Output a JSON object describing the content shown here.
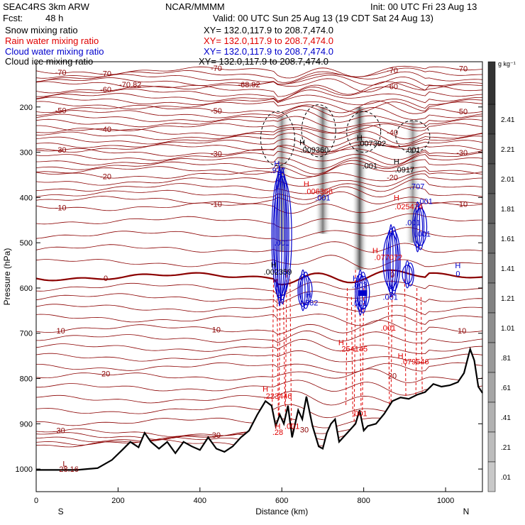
{
  "header": {
    "model": "SEAC4RS  3km ARW",
    "org": "NCAR/MMMM",
    "init": "Init: 00 UTC Fri 23 Aug 13",
    "fcst_label": "Fcst:",
    "fcst_value": "48 h",
    "valid": "Valid: 00 UTC Sun 25 Aug 13 (19 CDT Sat 24 Aug 13)",
    "fields": [
      {
        "label": "Snow mixing ratio",
        "xy": "XY= 132.0,117.9 to 208.7,474.0",
        "color": "#000000"
      },
      {
        "label": "Rain water mixing ratio",
        "xy": "XY= 132.0,117.9 to 208.7,474.0",
        "color": "#e00000"
      },
      {
        "label": "Cloud water mixing ratio",
        "xy": "XY= 132.0,117.9 to 208.7,474.0",
        "color": "#0000cc"
      },
      {
        "label": "Cloud ice mixing ratio",
        "xy": "XY= 132.0,117.9 to 208.7,474.0",
        "color": "#000000"
      }
    ]
  },
  "colorbar": {
    "unit": "g kg⁻¹",
    "labels": [
      "2.41",
      "2.21",
      "2.01",
      "1.81",
      "1.61",
      "1.41",
      "1.21",
      "1.01",
      ".81",
      ".61",
      ".41",
      ".21",
      ".01"
    ]
  },
  "chart_data": {
    "type": "cross-section",
    "xlabel": "Distance (km)",
    "ylabel": "Pressure (hPa)",
    "xlim": [
      0,
      1090
    ],
    "ylim": [
      1050,
      100
    ],
    "x_ticks": [
      "0",
      "200",
      "400",
      "600",
      "800",
      "1000"
    ],
    "y_ticks": [
      "200",
      "300",
      "400",
      "500",
      "600",
      "700",
      "800",
      "900",
      "1000"
    ],
    "x_end_labels": {
      "left": "S",
      "right": "N"
    },
    "temperature_labels": [
      "-70",
      "-60",
      "-50",
      "-40",
      "-30",
      "-20",
      "-10",
      "0",
      "10",
      "20",
      "30"
    ],
    "annotations": [
      {
        "text": "-70.82",
        "x": 230,
        "p": 150,
        "color": "#8b0000"
      },
      {
        "text": "-68.92",
        "x": 520,
        "p": 150,
        "color": "#8b0000"
      },
      {
        "text": "L",
        "x": 70,
        "p": 988,
        "color": "#8b0000"
      },
      {
        "text": "28.16",
        "x": 80,
        "p": 1000,
        "color": "#8b0000"
      },
      {
        "text": "H",
        "x": 650,
        "p": 278,
        "color": "#000000"
      },
      {
        "text": ".009360",
        "x": 680,
        "p": 294,
        "color": "#000000"
      },
      {
        "text": "H",
        "x": 790,
        "p": 268,
        "color": "#000000"
      },
      {
        "text": ".007392",
        "x": 820,
        "p": 280,
        "color": "#000000"
      },
      {
        "text": ".001",
        "x": 920,
        "p": 294,
        "color": "#000000"
      },
      {
        "text": "H",
        "x": 880,
        "p": 320,
        "color": "#000000"
      },
      {
        "text": ".0917",
        "x": 900,
        "p": 338,
        "color": "#000000"
      },
      {
        "text": ".001",
        "x": 815,
        "p": 330,
        "color": "#000000"
      },
      {
        "text": "H",
        "x": 580,
        "p": 548,
        "color": "#000000"
      },
      {
        "text": ".002359",
        "x": 590,
        "p": 564,
        "color": "#000000"
      },
      {
        "text": "H",
        "x": 588,
        "p": 325,
        "color": "#0000cc"
      },
      {
        "text": ".937",
        "x": 590,
        "p": 340,
        "color": "#0000cc"
      },
      {
        "text": "H",
        "x": 660,
        "p": 370,
        "color": "#e00000"
      },
      {
        "text": ".006366",
        "x": 690,
        "p": 386,
        "color": "#e00000"
      },
      {
        "text": ".001",
        "x": 700,
        "p": 400,
        "color": "#0000cc"
      },
      {
        "text": ".001",
        "x": 600,
        "p": 500,
        "color": "#0000cc"
      },
      {
        "text": ".707",
        "x": 930,
        "p": 375,
        "color": "#0000cc"
      },
      {
        "text": "H",
        "x": 880,
        "p": 400,
        "color": "#e00000"
      },
      {
        "text": ".025474",
        "x": 910,
        "p": 420,
        "color": "#e00000"
      },
      {
        "text": ".001",
        "x": 950,
        "p": 408,
        "color": "#0000cc"
      },
      {
        "text": ".001",
        "x": 920,
        "p": 455,
        "color": "#0000cc"
      },
      {
        "text": ".001",
        "x": 945,
        "p": 480,
        "color": "#0000cc"
      },
      {
        "text": "H",
        "x": 828,
        "p": 517,
        "color": "#e00000"
      },
      {
        "text": ".077072",
        "x": 860,
        "p": 532,
        "color": "#e00000"
      },
      {
        "text": "H",
        "x": 1030,
        "p": 550,
        "color": "#0000cc"
      },
      {
        "text": "0",
        "x": 1030,
        "p": 568,
        "color": "#0000cc"
      },
      {
        "text": "H",
        "x": 780,
        "p": 578,
        "color": "#0000cc"
      },
      {
        "text": ".803",
        "x": 790,
        "p": 593,
        "color": "#0000cc"
      },
      {
        "text": "H",
        "x": 665,
        "p": 615,
        "color": "#0000cc"
      },
      {
        "text": ".382",
        "x": 670,
        "p": 632,
        "color": "#0000cc"
      },
      {
        "text": ".001",
        "x": 790,
        "p": 633,
        "color": "#0000cc"
      },
      {
        "text": ".001",
        "x": 865,
        "p": 620,
        "color": "#0000cc"
      },
      {
        "text": ".001",
        "x": 860,
        "p": 688,
        "color": "#e00000"
      },
      {
        "text": "H",
        "x": 745,
        "p": 720,
        "color": "#e00000"
      },
      {
        "text": ".254145",
        "x": 775,
        "p": 734,
        "color": "#e00000"
      },
      {
        "text": "H",
        "x": 890,
        "p": 750,
        "color": "#e00000"
      },
      {
        "text": ".079546",
        "x": 925,
        "p": 762,
        "color": "#e00000"
      },
      {
        "text": "H",
        "x": 560,
        "p": 823,
        "color": "#e00000"
      },
      {
        "text": ".223446",
        "x": 590,
        "p": 838,
        "color": "#e00000"
      },
      {
        "text": ".001",
        "x": 790,
        "p": 877,
        "color": "#e00000"
      },
      {
        "text": "H",
        "x": 590,
        "p": 905,
        "color": "#e00000"
      },
      {
        "text": ".001",
        "x": 625,
        "p": 905,
        "color": "#e00000"
      },
      {
        "text": ".28",
        "x": 590,
        "p": 918,
        "color": "#e00000"
      },
      {
        "text": "30",
        "x": 655,
        "p": 913,
        "color": "#8b0000"
      }
    ],
    "terrain": [
      [
        0,
        1002
      ],
      [
        100,
        1002
      ],
      [
        150,
        998
      ],
      [
        185,
        980
      ],
      [
        210,
        958
      ],
      [
        230,
        940
      ],
      [
        250,
        952
      ],
      [
        265,
        920
      ],
      [
        280,
        940
      ],
      [
        300,
        955
      ],
      [
        320,
        940
      ],
      [
        340,
        965
      ],
      [
        360,
        940
      ],
      [
        380,
        950
      ],
      [
        400,
        958
      ],
      [
        420,
        930
      ],
      [
        440,
        955
      ],
      [
        460,
        962
      ],
      [
        480,
        950
      ],
      [
        500,
        930
      ],
      [
        520,
        915
      ],
      [
        540,
        880
      ],
      [
        560,
        850
      ],
      [
        575,
        860
      ],
      [
        585,
        905
      ],
      [
        595,
        880
      ],
      [
        605,
        900
      ],
      [
        615,
        860
      ],
      [
        625,
        930
      ],
      [
        640,
        870
      ],
      [
        650,
        890
      ],
      [
        660,
        840
      ],
      [
        675,
        905
      ],
      [
        690,
        950
      ],
      [
        700,
        955
      ],
      [
        710,
        920
      ],
      [
        720,
        900
      ],
      [
        730,
        890
      ],
      [
        740,
        940
      ],
      [
        760,
        920
      ],
      [
        780,
        900
      ],
      [
        790,
        870
      ],
      [
        800,
        915
      ],
      [
        810,
        905
      ],
      [
        830,
        900
      ],
      [
        850,
        878
      ],
      [
        870,
        850
      ],
      [
        890,
        842
      ],
      [
        910,
        845
      ],
      [
        930,
        836
      ],
      [
        950,
        830
      ],
      [
        970,
        812
      ],
      [
        990,
        818
      ],
      [
        1010,
        815
      ],
      [
        1030,
        808
      ],
      [
        1045,
        788
      ],
      [
        1060,
        735
      ],
      [
        1070,
        760
      ],
      [
        1080,
        818
      ],
      [
        1090,
        832
      ]
    ],
    "snow_columns": [
      {
        "x": 600,
        "p_top": 220,
        "p_bot": 520,
        "intensity": 0.55
      },
      {
        "x": 700,
        "p_top": 200,
        "p_bot": 480,
        "intensity": 0.65
      },
      {
        "x": 790,
        "p_top": 200,
        "p_bot": 560,
        "intensity": 0.8
      },
      {
        "x": 920,
        "p_top": 230,
        "p_bot": 500,
        "intensity": 0.5
      }
    ],
    "isotherms": [
      {
        "label": "-70",
        "base_p": 120
      },
      {
        "label": "-60",
        "base_p": 160
      },
      {
        "label": "-50",
        "base_p": 205
      },
      {
        "label": "-40",
        "base_p": 255
      },
      {
        "label": "-30",
        "base_p": 300
      },
      {
        "label": "-20",
        "base_p": 350
      },
      {
        "label": "-10",
        "base_p": 420
      },
      {
        "label": "0",
        "base_p": 575
      },
      {
        "label": "10",
        "base_p": 690
      },
      {
        "label": "20",
        "base_p": 795
      },
      {
        "label": "30",
        "base_p": 920
      }
    ]
  }
}
